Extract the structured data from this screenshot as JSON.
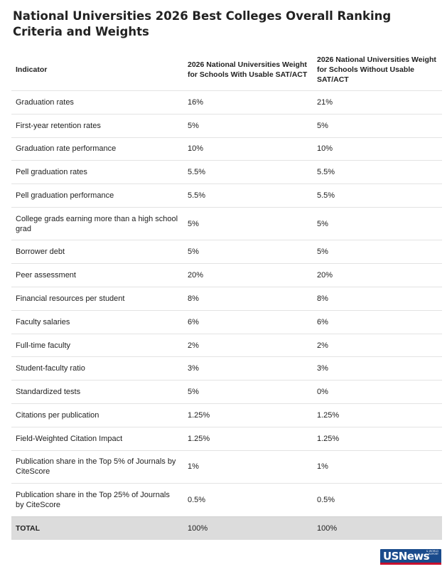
{
  "title": "National Universities 2026 Best Colleges Overall Ranking Criteria and Weights",
  "table": {
    "headers": {
      "indicator": "Indicator",
      "with_sat": "2026 National Universities Weight for Schools With Usable SAT/ACT",
      "without_sat": "2026 National Universities Weight for Schools Without Usable SAT/ACT"
    },
    "rows": [
      {
        "indicator": "Graduation rates",
        "with_sat": "16%",
        "without_sat": "21%"
      },
      {
        "indicator": "First-year retention rates",
        "with_sat": "5%",
        "without_sat": "5%"
      },
      {
        "indicator": "Graduation rate performance",
        "with_sat": "10%",
        "without_sat": "10%"
      },
      {
        "indicator": "Pell graduation rates",
        "with_sat": "5.5%",
        "without_sat": "5.5%"
      },
      {
        "indicator": "Pell graduation performance",
        "with_sat": "5.5%",
        "without_sat": "5.5%"
      },
      {
        "indicator": "College grads earning more than a high school grad",
        "with_sat": "5%",
        "without_sat": "5%"
      },
      {
        "indicator": "Borrower debt",
        "with_sat": "5%",
        "without_sat": "5%"
      },
      {
        "indicator": "Peer assessment",
        "with_sat": "20%",
        "without_sat": "20%"
      },
      {
        "indicator": "Financial resources per student",
        "with_sat": "8%",
        "without_sat": "8%"
      },
      {
        "indicator": "Faculty salaries",
        "with_sat": "6%",
        "without_sat": "6%"
      },
      {
        "indicator": "Full-time faculty",
        "with_sat": "2%",
        "without_sat": "2%"
      },
      {
        "indicator": "Student-faculty ratio",
        "with_sat": "3%",
        "without_sat": "3%"
      },
      {
        "indicator": "Standardized tests",
        "with_sat": "5%",
        "without_sat": "0%"
      },
      {
        "indicator": "Citations per publication",
        "with_sat": "1.25%",
        "without_sat": "1.25%"
      },
      {
        "indicator": "Field-Weighted Citation Impact",
        "with_sat": "1.25%",
        "without_sat": "1.25%"
      },
      {
        "indicator": "Publication share in the Top 5% of Journals by CiteScore",
        "with_sat": "1%",
        "without_sat": "1%"
      },
      {
        "indicator": "Publication share in the Top 25% of Journals by CiteScore",
        "with_sat": "0.5%",
        "without_sat": "0.5%"
      }
    ],
    "total": {
      "indicator": "TOTAL",
      "with_sat": "100%",
      "without_sat": "100%"
    }
  },
  "logo": {
    "text": "USNews",
    "small_text": "& WORLD REPORT"
  },
  "colors": {
    "total_row_bg": "#dcdcdc",
    "row_divider": "#e3e3e3",
    "logo_blue": "#1a4b8c",
    "logo_red": "#c8102e"
  }
}
